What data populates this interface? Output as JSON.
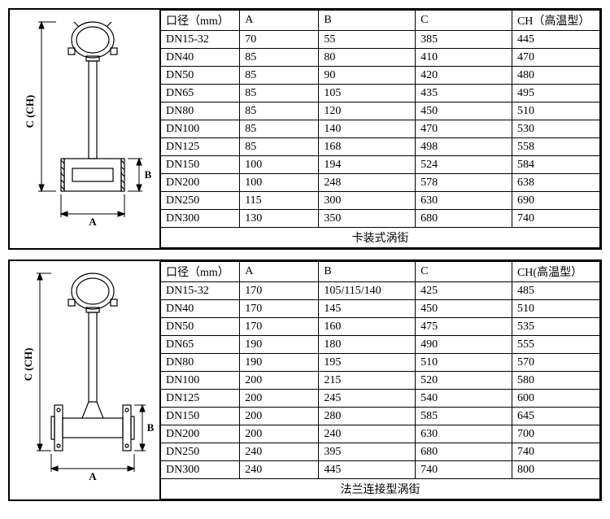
{
  "panel1": {
    "caption": "卡装式涡街",
    "diagram_labels": {
      "A": "A",
      "B": "B",
      "C": "C (CH)"
    },
    "columns": [
      "口径（mm）",
      "A",
      "B",
      "C",
      "CH（高温型）"
    ],
    "col_widths_pct": [
      18,
      18,
      22,
      22,
      20
    ],
    "rows": [
      [
        "DN15-32",
        "70",
        "55",
        "385",
        "445"
      ],
      [
        "DN40",
        "85",
        "80",
        "410",
        "470"
      ],
      [
        "DN50",
        "85",
        "90",
        "420",
        "480"
      ],
      [
        "DN65",
        "85",
        "105",
        "435",
        "495"
      ],
      [
        "DN80",
        "85",
        "120",
        "450",
        "510"
      ],
      [
        "DN100",
        "85",
        "140",
        "470",
        "530"
      ],
      [
        "DN125",
        "85",
        "168",
        "498",
        "558"
      ],
      [
        "DN150",
        "100",
        "194",
        "524",
        "584"
      ],
      [
        "DN200",
        "100",
        "248",
        "578",
        "638"
      ],
      [
        "DN250",
        "115",
        "300",
        "630",
        "690"
      ],
      [
        "DN300",
        "130",
        "350",
        "680",
        "740"
      ]
    ]
  },
  "panel2": {
    "caption": "法兰连接型涡街",
    "diagram_labels": {
      "A": "A",
      "B": "B",
      "C": "C (CH)"
    },
    "columns": [
      "口径（mm）",
      "A",
      "B",
      "C",
      "CH(高温型）"
    ],
    "col_widths_pct": [
      18,
      18,
      22,
      22,
      20
    ],
    "rows": [
      [
        "DN15-32",
        "170",
        "105/115/140",
        "425",
        "485"
      ],
      [
        "DN40",
        "170",
        "145",
        "450",
        "510"
      ],
      [
        "DN50",
        "170",
        "160",
        "475",
        "535"
      ],
      [
        "DN65",
        "190",
        "180",
        "490",
        "555"
      ],
      [
        "DN80",
        "190",
        "195",
        "510",
        "570"
      ],
      [
        "DN100",
        "200",
        "215",
        "520",
        "580"
      ],
      [
        "DN125",
        "200",
        "245",
        "540",
        "600"
      ],
      [
        "DN150",
        "200",
        "280",
        "585",
        "645"
      ],
      [
        "DN200",
        "200",
        "240",
        "630",
        "700"
      ],
      [
        "DN250",
        "240",
        "395",
        "680",
        "740"
      ],
      [
        "DN300",
        "240",
        "445",
        "740",
        "800"
      ]
    ]
  },
  "style": {
    "stroke": "#000000",
    "fill": "#ffffff",
    "hatch": "#000000"
  }
}
